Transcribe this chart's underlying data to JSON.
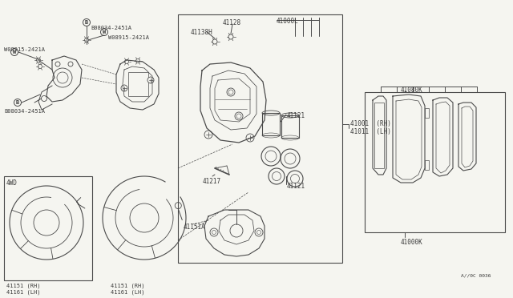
{
  "bg_color": "#f5f5f0",
  "line_color": "#4a4a4a",
  "text_color": "#3a3a3a",
  "fig_width": 6.4,
  "fig_height": 3.72,
  "dpi": 100,
  "labels": {
    "B08034_top": "B08034-2451A",
    "W08915_top": "W08915-2421A",
    "W08915_left": "W08915-2421A",
    "B08034_bottom": "B08034-2451A",
    "41128": "41128",
    "41138H": "41138H",
    "41121_top": "41121",
    "41121_bot": "41121",
    "41217": "41217",
    "41000L": "41000L",
    "41001": "41001  (RH)",
    "41011": "41011  (LH)",
    "4WD": "4WD",
    "41151_RH_left": "41151 (RH)",
    "41161_LH_left": "41161 (LH)",
    "41151A": "41151A",
    "41151_RH_right": "41151 (RH)",
    "41161_LH_right": "41161 (LH)",
    "41080K": "41080K",
    "41000K": "41000K",
    "diag_code": "A//0C 0036"
  }
}
